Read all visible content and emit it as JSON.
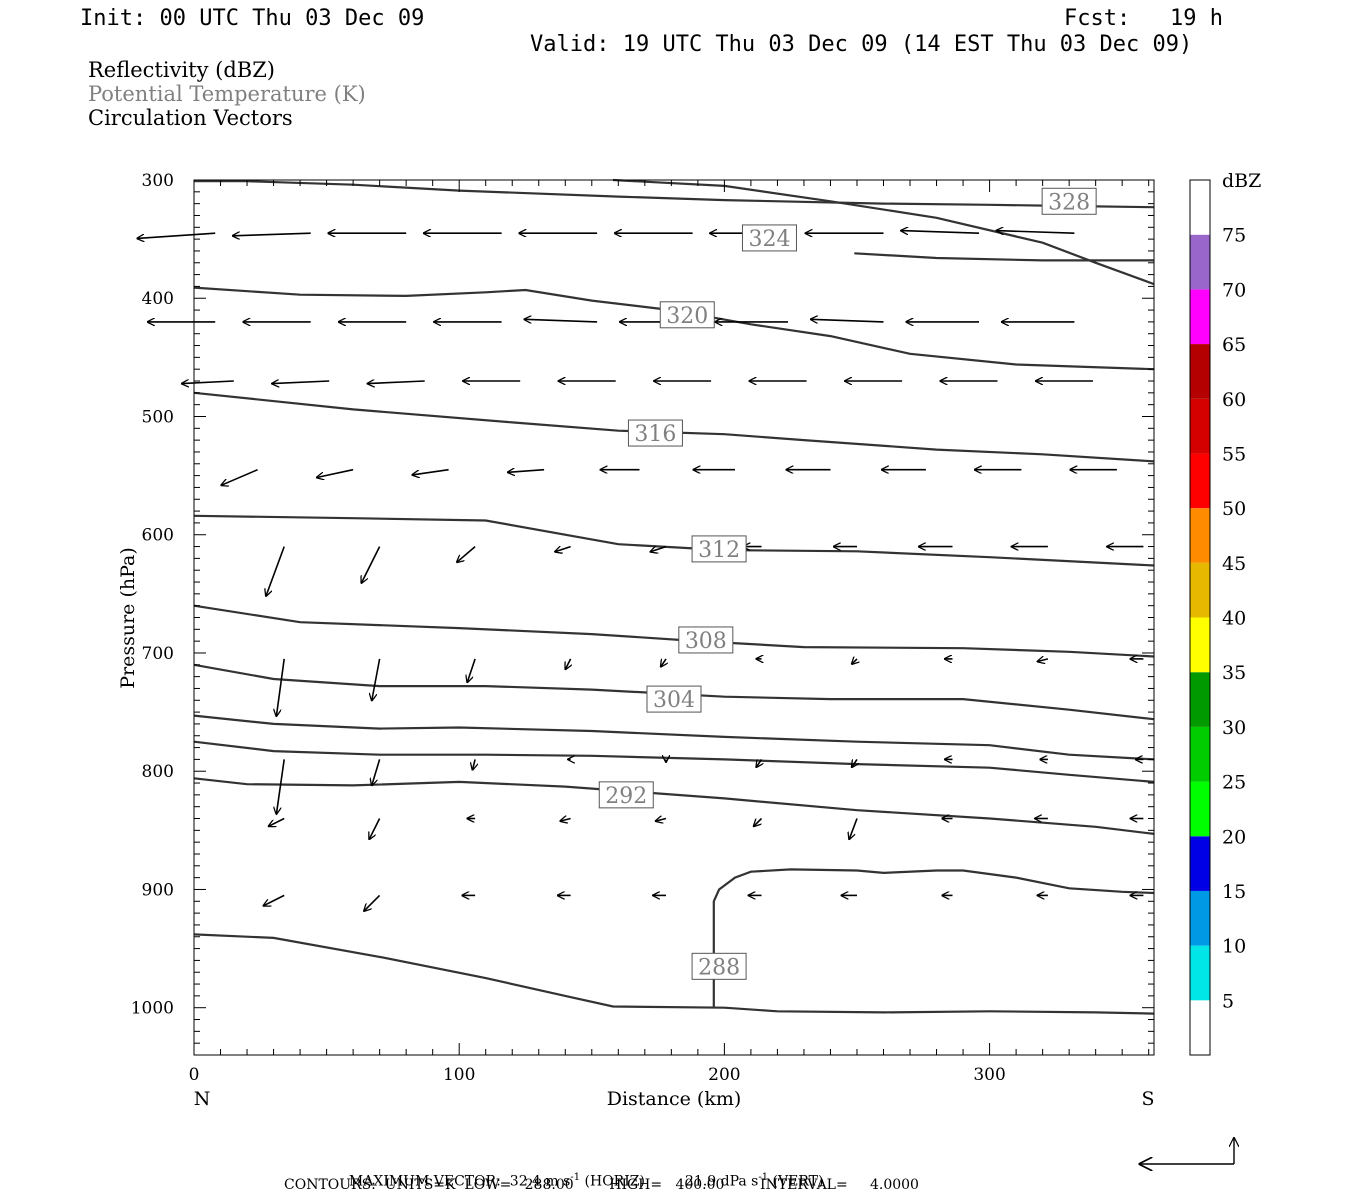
{
  "header": {
    "init": "Init: 00 UTC Thu 03 Dec 09",
    "fcst": "Fcst:   19 h",
    "valid": "Valid: 19 UTC Thu 03 Dec 09 (14 EST Thu 03 Dec 09)"
  },
  "fields": {
    "reflectivity": "Reflectivity (dBZ)",
    "theta": "Potential Temperature (K)",
    "vectors": "Circulation Vectors"
  },
  "colors": {
    "contour": "#333333",
    "theta_label": "#808080",
    "frame": "#000000"
  },
  "chart_data": {
    "type": "line",
    "xlabel": "Distance (km)",
    "ylabel": "Pressure (hPa)",
    "xlim": [
      0,
      362
    ],
    "ylim": [
      1040,
      300
    ],
    "y_scale": "linear, inverted",
    "xticks": [
      "0",
      "100",
      "200",
      "300"
    ],
    "yticks": [
      "300",
      "400",
      "500",
      "600",
      "700",
      "800",
      "900",
      "1000"
    ],
    "x_end_labels": {
      "left": "N",
      "right": "S"
    },
    "colorbar": {
      "unit": "dBZ",
      "levels": [
        "5",
        "10",
        "15",
        "20",
        "25",
        "30",
        "35",
        "40",
        "45",
        "50",
        "55",
        "60",
        "65",
        "70",
        "75"
      ],
      "colors": [
        "#ffffff",
        "#00e6e6",
        "#0099e6",
        "#0000e6",
        "#00ff00",
        "#00cc00",
        "#009900",
        "#ffff00",
        "#e6b800",
        "#ff8c00",
        "#ff0000",
        "#d40000",
        "#b40000",
        "#ff00ff",
        "#9966cc",
        "#ffffff"
      ]
    },
    "contours": [
      {
        "label": "328",
        "label_pos": [
          330,
          318
        ],
        "points": [
          [
            0,
            301
          ],
          [
            20,
            301
          ],
          [
            60,
            304
          ],
          [
            100,
            309
          ],
          [
            160,
            314
          ],
          [
            200,
            317
          ],
          [
            260,
            320
          ],
          [
            300,
            321
          ],
          [
            330,
            322
          ],
          [
            362,
            323
          ]
        ]
      },
      {
        "label": "324",
        "label_pos": [
          217,
          349
        ],
        "points": [
          [
            158,
            300
          ],
          [
            200,
            305
          ],
          [
            240,
            318
          ],
          [
            280,
            332
          ],
          [
            320,
            353
          ],
          [
            340,
            370
          ],
          [
            362,
            388
          ]
        ]
      },
      {
        "label": "",
        "points": [
          [
            249,
            362
          ],
          [
            280,
            366
          ],
          [
            320,
            368
          ],
          [
            362,
            368
          ]
        ]
      },
      {
        "label": "320",
        "label_pos": [
          186,
          414
        ],
        "points": [
          [
            0,
            391
          ],
          [
            40,
            397
          ],
          [
            80,
            398
          ],
          [
            110,
            395
          ],
          [
            125,
            393
          ],
          [
            150,
            402
          ],
          [
            180,
            410
          ],
          [
            210,
            422
          ],
          [
            240,
            432
          ],
          [
            270,
            447
          ],
          [
            310,
            456
          ],
          [
            362,
            460
          ]
        ]
      },
      {
        "label": "316",
        "label_pos": [
          174,
          514
        ],
        "points": [
          [
            0,
            480
          ],
          [
            60,
            494
          ],
          [
            120,
            505
          ],
          [
            160,
            512
          ],
          [
            200,
            515
          ],
          [
            230,
            520
          ],
          [
            280,
            528
          ],
          [
            320,
            532
          ],
          [
            362,
            538
          ]
        ]
      },
      {
        "label": "312",
        "label_pos": [
          198,
          612
        ],
        "points": [
          [
            0,
            584
          ],
          [
            60,
            586
          ],
          [
            110,
            588
          ],
          [
            160,
            608
          ],
          [
            200,
            613
          ],
          [
            250,
            614
          ],
          [
            300,
            619
          ],
          [
            362,
            626
          ]
        ]
      },
      {
        "label": "308",
        "label_pos": [
          193,
          689
        ],
        "points": [
          [
            0,
            660
          ],
          [
            40,
            674
          ],
          [
            100,
            679
          ],
          [
            150,
            684
          ],
          [
            190,
            690
          ],
          [
            230,
            695
          ],
          [
            290,
            696
          ],
          [
            330,
            699
          ],
          [
            362,
            703
          ]
        ]
      },
      {
        "label": "304",
        "label_pos": [
          181,
          739
        ],
        "points": [
          [
            0,
            710
          ],
          [
            30,
            722
          ],
          [
            70,
            728
          ],
          [
            110,
            728
          ],
          [
            150,
            731
          ],
          [
            200,
            737
          ],
          [
            240,
            739
          ],
          [
            290,
            739
          ],
          [
            330,
            748
          ],
          [
            362,
            756
          ]
        ]
      },
      {
        "label": "",
        "points": [
          [
            0,
            753
          ],
          [
            30,
            760
          ],
          [
            70,
            764
          ],
          [
            100,
            763
          ],
          [
            150,
            766
          ],
          [
            200,
            771
          ],
          [
            250,
            775
          ],
          [
            300,
            778
          ],
          [
            330,
            786
          ],
          [
            362,
            790
          ]
        ]
      },
      {
        "label": "",
        "points": [
          [
            0,
            775
          ],
          [
            30,
            783
          ],
          [
            70,
            786
          ],
          [
            110,
            786
          ],
          [
            150,
            787
          ],
          [
            200,
            790
          ],
          [
            250,
            794
          ],
          [
            300,
            797
          ],
          [
            330,
            803
          ],
          [
            362,
            809
          ]
        ]
      },
      {
        "label": "292",
        "label_pos": [
          163,
          820
        ],
        "points": [
          [
            0,
            806
          ],
          [
            20,
            811
          ],
          [
            60,
            812
          ],
          [
            100,
            809
          ],
          [
            140,
            813
          ],
          [
            200,
            823
          ],
          [
            250,
            833
          ],
          [
            300,
            840
          ],
          [
            340,
            847
          ],
          [
            362,
            853
          ]
        ]
      },
      {
        "label": "",
        "points": [
          [
            196,
            1000
          ],
          [
            196,
            910
          ],
          [
            198,
            900
          ],
          [
            204,
            890
          ],
          [
            210,
            885
          ],
          [
            225,
            883
          ],
          [
            250,
            884
          ],
          [
            260,
            886
          ],
          [
            280,
            884
          ],
          [
            290,
            884
          ],
          [
            310,
            890
          ],
          [
            330,
            899
          ],
          [
            350,
            902
          ],
          [
            362,
            903
          ]
        ]
      },
      {
        "label": "288",
        "label_pos": [
          198,
          965
        ],
        "points": [
          [
            0,
            938
          ],
          [
            30,
            941
          ],
          [
            70,
            957
          ],
          [
            110,
            975
          ],
          [
            140,
            990
          ],
          [
            158,
            999
          ],
          [
            200,
            1000
          ],
          [
            220,
            1003
          ],
          [
            260,
            1004
          ],
          [
            300,
            1003
          ],
          [
            340,
            1004
          ],
          [
            362,
            1005
          ]
        ]
      }
    ],
    "vectors": {
      "unit_note": "per-vector (u,v) shown in relative arrow length; negative u = toward N",
      "rows": [
        {
          "p": 345,
          "x": [
            8,
            44,
            80,
            116,
            152,
            188,
            224,
            260,
            296,
            332
          ],
          "u": [
            -30,
            -30,
            -30,
            -30,
            -30,
            -30,
            -30,
            -30,
            -30,
            -30
          ],
          "v": [
            -2,
            -1,
            0,
            0,
            0,
            0,
            0,
            0,
            1,
            1
          ]
        },
        {
          "p": 420,
          "x": [
            8,
            44,
            80,
            116,
            152,
            188,
            224,
            260,
            296,
            332
          ],
          "u": [
            -26,
            -26,
            -26,
            -26,
            -28,
            -28,
            -28,
            -28,
            -28,
            -28
          ],
          "v": [
            0,
            0,
            0,
            0,
            1,
            0,
            0,
            1,
            0,
            0
          ]
        },
        {
          "p": 470,
          "x": [
            15,
            51,
            87,
            123,
            159,
            195,
            231,
            267,
            303,
            339
          ],
          "u": [
            -20,
            -22,
            -22,
            -22,
            -22,
            -22,
            -22,
            -22,
            -22,
            -22
          ],
          "v": [
            -1,
            -1,
            -1,
            0,
            0,
            0,
            0,
            0,
            0,
            0
          ]
        },
        {
          "p": 545,
          "x": [
            24,
            60,
            96,
            132,
            168,
            204,
            240,
            276,
            312,
            348
          ],
          "u": [
            -14,
            -14,
            -14,
            -14,
            -15,
            -16,
            -17,
            -17,
            -18,
            -18
          ],
          "v": [
            -6,
            -3,
            -2,
            -1,
            0,
            0,
            0,
            0,
            0,
            0
          ]
        },
        {
          "p": 610,
          "x": [
            34,
            70,
            106,
            142,
            178,
            214,
            250,
            286,
            322,
            358
          ],
          "u": [
            -7,
            -7,
            -7,
            -6,
            -6,
            -7,
            -9,
            -13,
            -14,
            -14
          ],
          "v": [
            -19,
            -14,
            -6,
            -2,
            -2,
            0,
            0,
            0,
            0,
            0
          ]
        },
        {
          "p": 705,
          "x": [
            34,
            70,
            106,
            142,
            178,
            214,
            250,
            286,
            322,
            358
          ],
          "u": [
            -3,
            -3,
            -3,
            -2,
            -2,
            -2,
            -2,
            -3,
            -4,
            -5
          ],
          "v": [
            -22,
            -16,
            -9,
            -4,
            -3,
            0,
            -2,
            0,
            -1,
            0
          ]
        },
        {
          "p": 790,
          "x": [
            34,
            70,
            106,
            142,
            178,
            214,
            250,
            286,
            322,
            358
          ],
          "u": [
            -3,
            -3,
            -1,
            -1,
            0,
            -2,
            -2,
            -3,
            -3,
            -3
          ],
          "v": [
            -21,
            -10,
            -4,
            0,
            -1,
            -3,
            -3,
            0,
            0,
            0
          ]
        },
        {
          "p": 840,
          "x": [
            34,
            70,
            106,
            142,
            178,
            214,
            250,
            286,
            322,
            358
          ],
          "u": [
            -6,
            -4,
            -3,
            -4,
            -4,
            -3,
            -3,
            -4,
            -5,
            -5
          ],
          "v": [
            -3,
            -8,
            0,
            -1,
            -1,
            -3,
            -8,
            0,
            0,
            0
          ]
        },
        {
          "p": 905,
          "x": [
            34,
            70,
            106,
            142,
            178,
            214,
            250,
            286,
            322,
            358
          ],
          "u": [
            -8,
            -6,
            -5,
            -5,
            -5,
            -5,
            -6,
            -4,
            -4,
            -5
          ],
          "v": [
            -4,
            -6,
            0,
            0,
            0,
            0,
            0,
            0,
            0,
            0
          ]
        }
      ]
    }
  },
  "footer": {
    "max_vector_prefix": "MAXIMUM VECTOR:  32.4 m s",
    "max_vector_sup1": "-1",
    "max_vector_mid": " (HORIZ)         21.9 dPa s",
    "max_vector_sup2": "-1",
    "max_vector_suffix": " (VERT)",
    "contours": "CONTOURS:  UNITS=K  LOW=   288.00        HIGH=   400.00        INTERVAL=     4.0000"
  }
}
